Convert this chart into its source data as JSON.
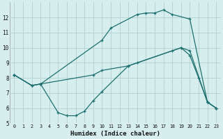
{
  "xlabel": "Humidex (Indice chaleur)",
  "bg_color": "#d6eeed",
  "grid_color": "#b8d4d4",
  "line_color": "#1e7070",
  "xlim": [
    -0.5,
    23.5
  ],
  "ylim": [
    5,
    13
  ],
  "yticks": [
    5,
    6,
    7,
    8,
    9,
    10,
    11,
    12
  ],
  "xticks": [
    0,
    1,
    2,
    3,
    4,
    5,
    6,
    7,
    8,
    9,
    10,
    11,
    12,
    13,
    14,
    15,
    16,
    17,
    18,
    19,
    20,
    21,
    22,
    23
  ],
  "lines": [
    {
      "x": [
        0,
        2,
        3,
        9,
        10,
        13,
        18,
        19,
        20,
        21,
        22,
        23
      ],
      "y": [
        8.2,
        7.5,
        7.6,
        8.2,
        8.5,
        8.8,
        9.8,
        10.0,
        9.5,
        8.0,
        6.4,
        6.0
      ]
    },
    {
      "x": [
        0,
        2,
        3,
        10,
        11,
        14,
        15,
        16,
        17,
        18,
        20,
        22,
        23
      ],
      "y": [
        8.2,
        7.5,
        7.6,
        10.5,
        11.3,
        12.2,
        12.3,
        12.3,
        12.5,
        12.2,
        11.9,
        6.4,
        6.0
      ]
    },
    {
      "x": [
        0,
        2,
        3,
        5,
        6,
        7,
        8,
        9,
        10,
        13,
        14,
        19,
        20,
        22,
        23
      ],
      "y": [
        8.2,
        7.5,
        7.6,
        5.7,
        5.5,
        5.5,
        5.8,
        6.5,
        7.1,
        8.8,
        9.0,
        10.0,
        9.8,
        6.4,
        6.0
      ]
    }
  ]
}
